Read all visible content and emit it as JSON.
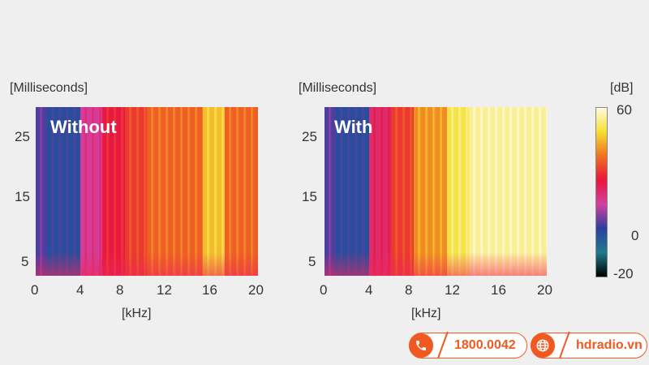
{
  "chart_data": [
    {
      "type": "heatmap",
      "title": "Without",
      "ylabel": "[Milliseconds]",
      "xlabel": "[kHz]",
      "x_ticks": [
        "0",
        "4",
        "8",
        "12",
        "16",
        "20"
      ],
      "y_ticks": [
        "25",
        "15",
        "5"
      ],
      "xlim": [
        0,
        20
      ],
      "ylim": [
        2,
        30
      ],
      "colormap_bands_khz": [
        {
          "x0": 0,
          "x1": 1,
          "level_db": 5
        },
        {
          "x0": 1,
          "x1": 4,
          "level_db": 0
        },
        {
          "x0": 4,
          "x1": 6,
          "level_db": 15
        },
        {
          "x0": 6,
          "x1": 8,
          "level_db": 25
        },
        {
          "x0": 8,
          "x1": 10,
          "level_db": 30
        },
        {
          "x0": 10,
          "x1": 15,
          "level_db": 35
        },
        {
          "x0": 15,
          "x1": 17,
          "level_db": 45
        },
        {
          "x0": 17,
          "x1": 20,
          "level_db": 35
        }
      ]
    },
    {
      "type": "heatmap",
      "title": "With",
      "ylabel": "[Milliseconds]",
      "xlabel": "[kHz]",
      "x_ticks": [
        "0",
        "4",
        "8",
        "12",
        "16",
        "20"
      ],
      "y_ticks": [
        "25",
        "15",
        "5"
      ],
      "xlim": [
        0,
        20
      ],
      "ylim": [
        2,
        30
      ],
      "colormap_bands_khz": [
        {
          "x0": 0,
          "x1": 1,
          "level_db": 5
        },
        {
          "x0": 1,
          "x1": 4,
          "level_db": 0
        },
        {
          "x0": 4,
          "x1": 6,
          "level_db": 20
        },
        {
          "x0": 6,
          "x1": 8,
          "level_db": 30
        },
        {
          "x0": 8,
          "x1": 11,
          "level_db": 40
        },
        {
          "x0": 11,
          "x1": 13,
          "level_db": 50
        },
        {
          "x0": 13,
          "x1": 20,
          "level_db": 55
        }
      ]
    }
  ],
  "colorbar": {
    "unit": "[dB]",
    "ticks": [
      "60",
      "0",
      "-20"
    ],
    "range": [
      -20,
      60
    ],
    "stops": [
      "#000000",
      "#1e7a8c",
      "#2b3fa0",
      "#d43fa0",
      "#e8163c",
      "#f07020",
      "#f5e030",
      "#fffbe0"
    ]
  },
  "contact": {
    "phone": "1800.0042",
    "website": "hdradio.vn",
    "accent": "#f05a22"
  }
}
